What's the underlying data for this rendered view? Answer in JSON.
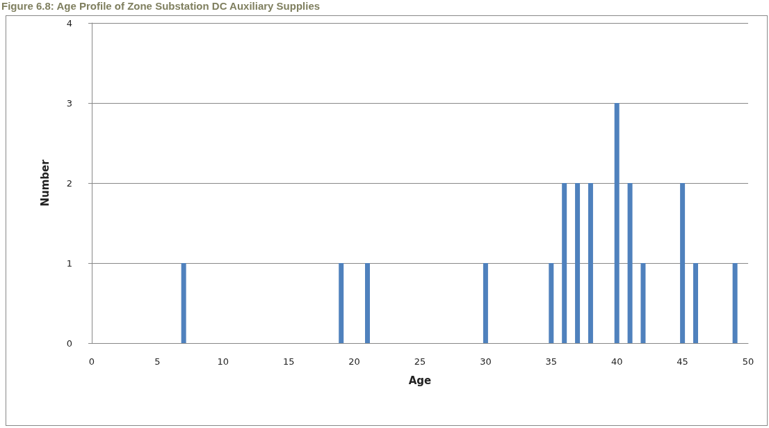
{
  "chart_data": {
    "type": "bar",
    "title": "Figure 6.8: Age Profile of Zone Substation DC Auxiliary Supplies",
    "xlabel": "Age",
    "ylabel": "Number",
    "x": [
      7,
      19,
      21,
      30,
      35,
      36,
      37,
      38,
      40,
      41,
      42,
      45,
      46,
      49
    ],
    "values": [
      1,
      1,
      1,
      1,
      1,
      2,
      2,
      2,
      3,
      2,
      1,
      2,
      1,
      1
    ],
    "color": "#4f81bd",
    "xlim": [
      0,
      50
    ],
    "xticks": [
      0,
      5,
      10,
      15,
      20,
      25,
      30,
      35,
      40,
      45,
      50
    ],
    "ylim": [
      0,
      4
    ],
    "yticks": [
      0,
      1,
      2,
      3,
      4
    ],
    "grid": "y"
  }
}
